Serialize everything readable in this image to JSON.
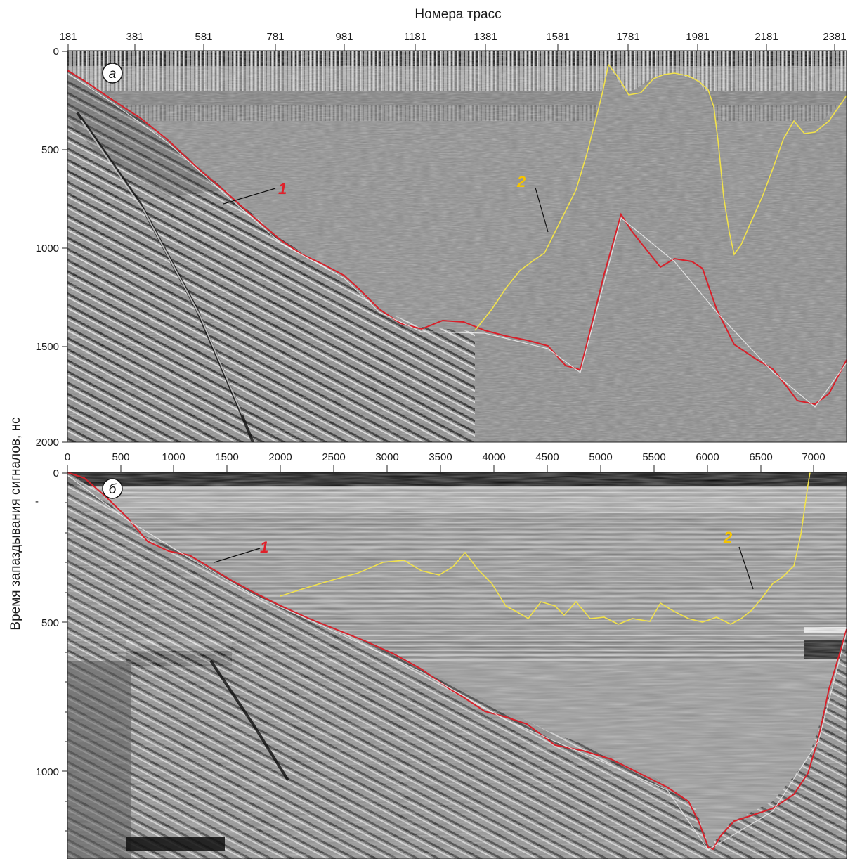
{
  "top_axis": {
    "title": "Номера трасс",
    "ticks": [
      "181",
      "381",
      "581",
      "781",
      "981",
      "1181",
      "1381",
      "1581",
      "1781",
      "1981",
      "2181",
      "2381"
    ]
  },
  "bottom_panel_axis": {
    "ticks": [
      "0",
      "500",
      "1000",
      "1500",
      "2000",
      "2500",
      "3000",
      "3500",
      "4000",
      "4500",
      "5000",
      "5500",
      "6000",
      "6500",
      "7000"
    ]
  },
  "y_axis": {
    "title": "Время запаздывания сигналов, нс",
    "panel_a_ticks": [
      "0",
      "500",
      "1000",
      "1500",
      "2000"
    ],
    "panel_b_ticks": [
      "0",
      "-",
      "500",
      "1000"
    ]
  },
  "panels": {
    "a": {
      "letter": "а"
    },
    "b": {
      "letter": "б"
    }
  },
  "annotations": {
    "a_label_1": "1",
    "a_label_2": "2",
    "b_label_1": "1",
    "b_label_2": "2"
  },
  "colors": {
    "bottom_line": "#d8202a",
    "top_line": "#f2e24a",
    "label_1": "#e0202a",
    "label_2": "#f5c400"
  }
}
